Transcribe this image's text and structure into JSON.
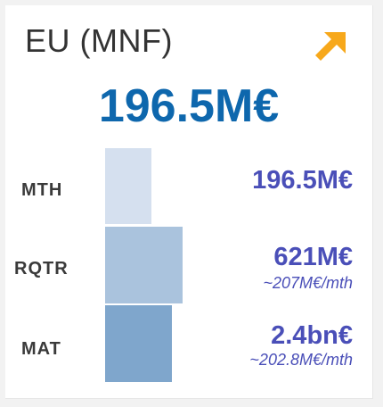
{
  "card": {
    "title": "EU (MNF)",
    "headline_value": "196.5M€",
    "trend_icon": "arrow-up-right-icon",
    "colors": {
      "headline": "#0e67ad",
      "values": "#4a4fb8",
      "trend_arrow": "#f7a81b"
    }
  },
  "rows": [
    {
      "label": "MTH",
      "value": "196.5M€",
      "sub": "",
      "bar_color": "#d5e0ef"
    },
    {
      "label": "RQTR",
      "value": "621M€",
      "sub": "~207M€/mth",
      "bar_color": "#aac3dd"
    },
    {
      "label": "MAT",
      "value": "2.4bn€",
      "sub": "~202.8M€/mth",
      "bar_color": "#7fa6cc"
    }
  ]
}
